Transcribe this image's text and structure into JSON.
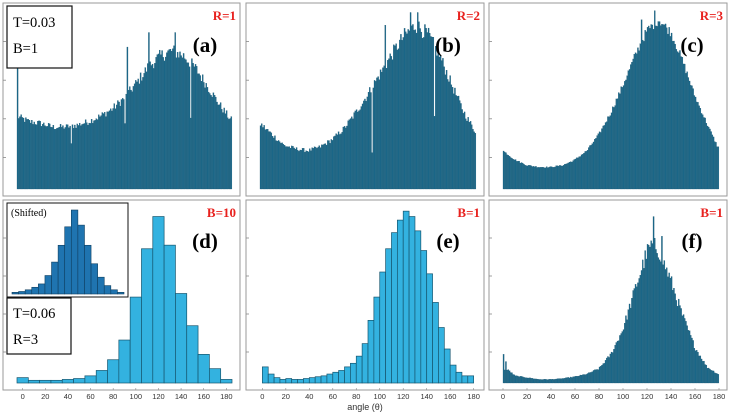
{
  "x_label": "angle (θ)",
  "x_ticks": [
    "0",
    "20",
    "40",
    "60",
    "80",
    "100",
    "120",
    "140",
    "160",
    "180"
  ],
  "colors": {
    "dark_bar": "#1d6a8c",
    "light_bar": "#33b2e0",
    "inset_bar": "#1f74b0",
    "key_red": "#e8211e"
  },
  "top_left_box": [
    "T=0.03",
    "B=1"
  ],
  "bottom_left_box": [
    "T=0.06",
    "R=3"
  ],
  "inset_label": "(Shifted)",
  "chart_data": [
    {
      "panel": "(a)",
      "key": "R=1",
      "type": "bar",
      "style": "dark",
      "xlim": [
        0,
        180
      ],
      "ylim": [
        0,
        1
      ],
      "bin_width": 1,
      "anchors": [
        [
          0,
          0.4
        ],
        [
          10,
          0.37
        ],
        [
          20,
          0.36
        ],
        [
          30,
          0.34
        ],
        [
          40,
          0.34
        ],
        [
          50,
          0.35
        ],
        [
          60,
          0.37
        ],
        [
          70,
          0.4
        ],
        [
          80,
          0.44
        ],
        [
          90,
          0.5
        ],
        [
          100,
          0.58
        ],
        [
          110,
          0.67
        ],
        [
          120,
          0.73
        ],
        [
          130,
          0.76
        ],
        [
          140,
          0.73
        ],
        [
          150,
          0.66
        ],
        [
          160,
          0.56
        ],
        [
          170,
          0.46
        ],
        [
          179,
          0.38
        ]
      ],
      "spikes": [
        [
          0,
          0.8
        ],
        [
          45,
          0.25
        ],
        [
          90,
          0.36
        ],
        [
          92,
          0.78
        ],
        [
          110,
          0.86
        ],
        [
          132,
          0.86
        ],
        [
          145,
          0.39
        ]
      ],
      "noise": 0.05
    },
    {
      "panel": "(b)",
      "key": "R=2",
      "type": "bar",
      "style": "dark",
      "xlim": [
        0,
        180
      ],
      "ylim": [
        0,
        1
      ],
      "bin_width": 1,
      "anchors": [
        [
          0,
          0.36
        ],
        [
          10,
          0.3
        ],
        [
          20,
          0.24
        ],
        [
          30,
          0.22
        ],
        [
          40,
          0.21
        ],
        [
          50,
          0.23
        ],
        [
          60,
          0.27
        ],
        [
          70,
          0.33
        ],
        [
          80,
          0.42
        ],
        [
          90,
          0.52
        ],
        [
          100,
          0.63
        ],
        [
          110,
          0.74
        ],
        [
          120,
          0.84
        ],
        [
          130,
          0.9
        ],
        [
          140,
          0.85
        ],
        [
          150,
          0.73
        ],
        [
          160,
          0.57
        ],
        [
          170,
          0.42
        ],
        [
          179,
          0.32
        ]
      ],
      "spikes": [
        [
          93,
          0.2
        ],
        [
          104,
          0.9
        ],
        [
          131,
          0.97
        ],
        [
          125,
          0.97
        ],
        [
          145,
          0.4
        ]
      ],
      "noise": 0.05
    },
    {
      "panel": "(c)",
      "key": "R=3",
      "type": "bar",
      "style": "dark",
      "xlim": [
        0,
        180
      ],
      "ylim": [
        0,
        1
      ],
      "bin_width": 1,
      "anchors": [
        [
          0,
          0.21
        ],
        [
          10,
          0.16
        ],
        [
          20,
          0.13
        ],
        [
          30,
          0.12
        ],
        [
          40,
          0.12
        ],
        [
          50,
          0.13
        ],
        [
          60,
          0.16
        ],
        [
          70,
          0.21
        ],
        [
          80,
          0.3
        ],
        [
          90,
          0.42
        ],
        [
          100,
          0.57
        ],
        [
          110,
          0.73
        ],
        [
          120,
          0.87
        ],
        [
          130,
          0.93
        ],
        [
          140,
          0.86
        ],
        [
          150,
          0.7
        ],
        [
          160,
          0.51
        ],
        [
          170,
          0.36
        ],
        [
          179,
          0.23
        ]
      ],
      "spikes": [
        [
          126,
          0.98
        ],
        [
          115,
          0.93
        ]
      ],
      "noise": 0.03
    },
    {
      "panel": "(d)",
      "key": "B=10",
      "type": "bar",
      "style": "light",
      "xlim": [
        -5,
        185
      ],
      "ylim": [
        0,
        1
      ],
      "categories": [
        0,
        10,
        20,
        30,
        40,
        50,
        60,
        70,
        80,
        90,
        100,
        110,
        120,
        130,
        140,
        150,
        160,
        170,
        180
      ],
      "values": [
        0.03,
        0.015,
        0.015,
        0.015,
        0.02,
        0.025,
        0.04,
        0.07,
        0.13,
        0.24,
        0.48,
        0.75,
        0.93,
        0.77,
        0.5,
        0.32,
        0.16,
        0.08,
        0.02
      ],
      "inset": {
        "values": [
          0.02,
          0.03,
          0.05,
          0.08,
          0.12,
          0.22,
          0.38,
          0.58,
          0.8,
          1.0,
          0.82,
          0.58,
          0.36,
          0.2,
          0.1,
          0.05,
          0.02
        ]
      }
    },
    {
      "panel": "(e)",
      "key": "B=1",
      "type": "bar",
      "style": "light",
      "xlim": [
        -2,
        182
      ],
      "ylim": [
        0,
        1
      ],
      "bin_width": 5,
      "categories": [
        0,
        5,
        10,
        15,
        20,
        25,
        30,
        35,
        40,
        45,
        50,
        55,
        60,
        65,
        70,
        75,
        80,
        85,
        90,
        95,
        100,
        105,
        110,
        115,
        120,
        125,
        130,
        135,
        140,
        145,
        150,
        155,
        160,
        165,
        170,
        175
      ],
      "values": [
        0.09,
        0.05,
        0.03,
        0.02,
        0.025,
        0.02,
        0.02,
        0.025,
        0.03,
        0.035,
        0.04,
        0.05,
        0.06,
        0.07,
        0.09,
        0.11,
        0.15,
        0.22,
        0.35,
        0.48,
        0.62,
        0.75,
        0.84,
        0.91,
        0.96,
        0.93,
        0.85,
        0.74,
        0.61,
        0.45,
        0.31,
        0.19,
        0.1,
        0.06,
        0.04,
        0.04
      ]
    },
    {
      "panel": "(f)",
      "key": "B=1",
      "type": "bar",
      "style": "dark",
      "xlim": [
        0,
        180
      ],
      "ylim": [
        0,
        1
      ],
      "bin_width": 1,
      "anchors": [
        [
          0,
          0.08
        ],
        [
          5,
          0.07
        ],
        [
          10,
          0.04
        ],
        [
          20,
          0.03
        ],
        [
          30,
          0.02
        ],
        [
          40,
          0.02
        ],
        [
          50,
          0.025
        ],
        [
          60,
          0.035
        ],
        [
          70,
          0.05
        ],
        [
          80,
          0.08
        ],
        [
          90,
          0.16
        ],
        [
          100,
          0.3
        ],
        [
          110,
          0.52
        ],
        [
          120,
          0.73
        ],
        [
          125,
          0.78
        ],
        [
          130,
          0.74
        ],
        [
          140,
          0.57
        ],
        [
          150,
          0.37
        ],
        [
          160,
          0.2
        ],
        [
          170,
          0.09
        ],
        [
          179,
          0.05
        ]
      ],
      "spikes": [
        [
          0,
          0.16
        ],
        [
          2,
          0.12
        ],
        [
          125,
          0.93
        ],
        [
          132,
          0.82
        ]
      ],
      "noise": 0.07
    }
  ]
}
